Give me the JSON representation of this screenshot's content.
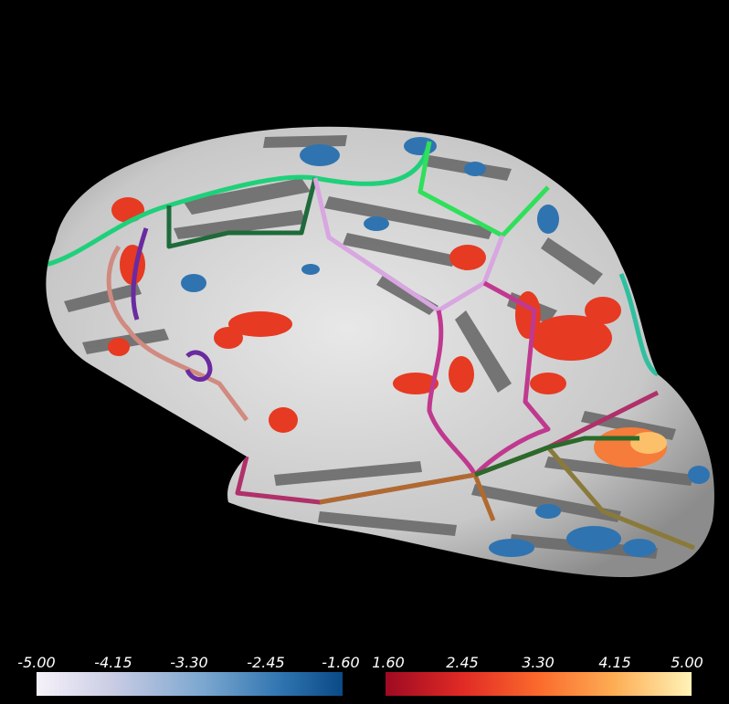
{
  "colorbars": {
    "negative": {
      "ticks": [
        "-5.00",
        "-4.15",
        "-3.30",
        "-2.45",
        "-1.60"
      ],
      "colors": [
        "#f6f2fa",
        "#0a4a86"
      ]
    },
    "positive": {
      "ticks": [
        "1.60",
        "2.45",
        "3.30",
        "4.15",
        "5.00"
      ],
      "colors": [
        "#9e0a22",
        "#fff3b8"
      ]
    }
  },
  "colors": {
    "background": "#000000",
    "surface_light": "#c8c8c8",
    "surface_dark": "#6a6a6a"
  }
}
